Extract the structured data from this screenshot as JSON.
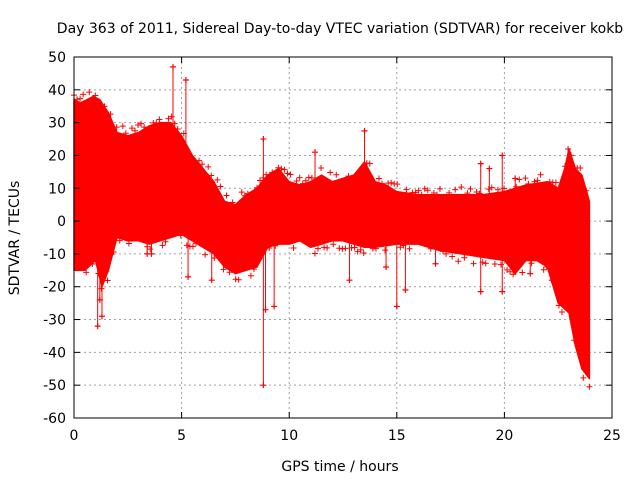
{
  "chart_data": {
    "type": "scatter",
    "title": "Day 363 of 2011, Sidereal Day-to-day VTEC variation (SDTVAR) for receiver kokb",
    "xlabel": "GPS time / hours",
    "ylabel": "SDTVAR / TECUs",
    "xlim": [
      0,
      25
    ],
    "ylim": [
      -60,
      50
    ],
    "xticks": [
      0,
      5,
      10,
      15,
      20,
      25
    ],
    "yticks": [
      -60,
      -50,
      -40,
      -30,
      -20,
      -10,
      0,
      10,
      20,
      30,
      40,
      50
    ],
    "grid": true,
    "legend": "none",
    "series": [
      {
        "name": "SDTVAR",
        "color": "#ff0000",
        "marker": "+",
        "band_upper": [
          [
            0,
            37
          ],
          [
            0.3,
            36
          ],
          [
            0.6,
            37
          ],
          [
            0.9,
            38
          ],
          [
            1.2,
            37
          ],
          [
            1.6,
            33
          ],
          [
            2.0,
            27
          ],
          [
            2.5,
            26
          ],
          [
            3.0,
            27
          ],
          [
            3.5,
            29
          ],
          [
            4.0,
            30
          ],
          [
            4.5,
            30
          ],
          [
            5.0,
            26
          ],
          [
            5.5,
            20
          ],
          [
            6.0,
            16
          ],
          [
            6.5,
            12
          ],
          [
            7.0,
            6
          ],
          [
            7.5,
            5
          ],
          [
            8.0,
            8
          ],
          [
            8.5,
            10
          ],
          [
            9.0,
            14
          ],
          [
            9.5,
            16
          ],
          [
            10.0,
            12
          ],
          [
            10.5,
            11
          ],
          [
            11.0,
            12
          ],
          [
            11.5,
            14
          ],
          [
            12.0,
            12
          ],
          [
            12.5,
            13
          ],
          [
            13.0,
            14
          ],
          [
            13.5,
            18
          ],
          [
            14.0,
            12
          ],
          [
            14.5,
            11
          ],
          [
            15.0,
            9
          ],
          [
            16.0,
            8
          ],
          [
            17.0,
            8
          ],
          [
            18.0,
            8
          ],
          [
            19.0,
            8
          ],
          [
            20.0,
            9
          ],
          [
            21.0,
            11
          ],
          [
            22.0,
            12
          ],
          [
            22.5,
            10
          ],
          [
            22.8,
            16
          ],
          [
            23.0,
            22
          ],
          [
            23.3,
            16
          ],
          [
            23.6,
            14
          ],
          [
            23.95,
            6
          ]
        ],
        "band_lower": [
          [
            0,
            -15
          ],
          [
            0.5,
            -15
          ],
          [
            1.0,
            -12
          ],
          [
            1.3,
            -20
          ],
          [
            1.6,
            -15
          ],
          [
            2.0,
            -5
          ],
          [
            2.5,
            -6
          ],
          [
            3.0,
            -6
          ],
          [
            3.5,
            -7
          ],
          [
            4.0,
            -6
          ],
          [
            4.5,
            -5
          ],
          [
            5.0,
            -4
          ],
          [
            5.5,
            -6
          ],
          [
            6.0,
            -8
          ],
          [
            6.5,
            -10
          ],
          [
            7.0,
            -14
          ],
          [
            7.5,
            -16
          ],
          [
            8.0,
            -15
          ],
          [
            8.5,
            -14
          ],
          [
            9.0,
            -8
          ],
          [
            9.5,
            -7
          ],
          [
            10.0,
            -7
          ],
          [
            10.5,
            -6
          ],
          [
            11.0,
            -8
          ],
          [
            11.5,
            -7
          ],
          [
            12.0,
            -6
          ],
          [
            12.5,
            -6
          ],
          [
            13.0,
            -7
          ],
          [
            13.5,
            -8
          ],
          [
            14.0,
            -8
          ],
          [
            15.0,
            -7
          ],
          [
            16.0,
            -7
          ],
          [
            17.0,
            -9
          ],
          [
            18.0,
            -10
          ],
          [
            19.0,
            -11
          ],
          [
            20.0,
            -12
          ],
          [
            20.5,
            -16
          ],
          [
            21.0,
            -12
          ],
          [
            21.5,
            -12
          ],
          [
            22.0,
            -14
          ],
          [
            22.5,
            -25
          ],
          [
            23.0,
            -28
          ],
          [
            23.3,
            -38
          ],
          [
            23.6,
            -45
          ],
          [
            23.95,
            -48
          ]
        ],
        "outliers": [
          [
            4.6,
            47
          ],
          [
            5.2,
            43
          ],
          [
            13.5,
            27.5
          ],
          [
            8.8,
            25
          ],
          [
            11.2,
            21
          ],
          [
            18.9,
            17.5
          ],
          [
            19.3,
            16
          ],
          [
            19.9,
            20
          ],
          [
            20.5,
            13
          ],
          [
            8.8,
            -50
          ],
          [
            9.3,
            -26
          ],
          [
            8.9,
            -27
          ],
          [
            5.3,
            -17
          ],
          [
            15.0,
            -26
          ],
          [
            15.4,
            -21
          ],
          [
            18.9,
            -21.5
          ],
          [
            19.9,
            -21.5
          ],
          [
            1.1,
            -32
          ],
          [
            1.3,
            -29
          ],
          [
            1.2,
            -24
          ],
          [
            3.4,
            -10
          ],
          [
            3.6,
            -10
          ],
          [
            6.4,
            -18
          ],
          [
            12.8,
            -18
          ],
          [
            14.5,
            -14
          ],
          [
            16.8,
            -13
          ],
          [
            21.2,
            -16
          ],
          [
            22.2,
            -18
          ]
        ]
      }
    ]
  }
}
